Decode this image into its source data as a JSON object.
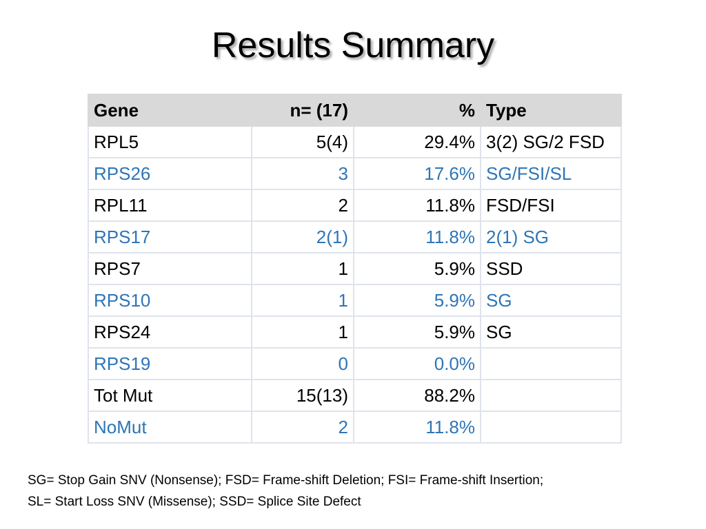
{
  "slide": {
    "title": "Results Summary"
  },
  "table": {
    "headers": {
      "gene": "Gene",
      "n": "n= (17)",
      "percent": "%",
      "type": "Type"
    },
    "rows": [
      {
        "gene": "RPL5",
        "n": "5(4)",
        "percent": "29.4%",
        "type": "3(2) SG/2 FSD"
      },
      {
        "gene": "RPS26",
        "n": "3",
        "percent": "17.6%",
        "type": "SG/FSI/SL"
      },
      {
        "gene": "RPL11",
        "n": "2",
        "percent": "11.8%",
        "type": "FSD/FSI"
      },
      {
        "gene": "RPS17",
        "n": "2(1)",
        "percent": "11.8%",
        "type": "2(1) SG"
      },
      {
        "gene": "RPS7",
        "n": "1",
        "percent": "5.9%",
        "type": "SSD"
      },
      {
        "gene": "RPS10",
        "n": "1",
        "percent": "5.9%",
        "type": "SG"
      },
      {
        "gene": "RPS24",
        "n": "1",
        "percent": "5.9%",
        "type": "SG"
      },
      {
        "gene": "RPS19",
        "n": "0",
        "percent": "0.0%",
        "type": ""
      },
      {
        "gene": "Tot Mut",
        "n": "15(13)",
        "percent": "88.2%",
        "type": ""
      },
      {
        "gene": "NoMut",
        "n": "2",
        "percent": "11.8%",
        "type": ""
      }
    ],
    "colors": {
      "header_bg": "#d9d9d9",
      "alt_row_text": "#2e75b6",
      "row_text": "#000000"
    }
  },
  "footnote": {
    "line1": "SG= Stop Gain SNV (Nonsense); FSD= Frame-shift Deletion; FSI= Frame-shift Insertion;",
    "line2": "SL= Start Loss SNV (Missense); SSD= Splice Site Defect"
  }
}
